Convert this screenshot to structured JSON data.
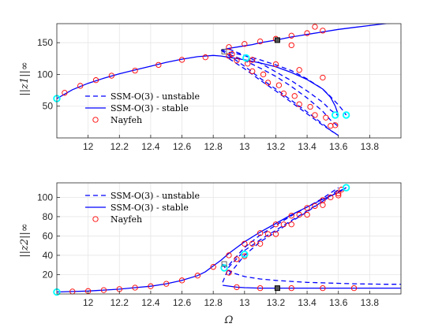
{
  "chart_data": [
    {
      "type": "line",
      "xlabel": "",
      "ylabel": "||z1||∞",
      "xlim": [
        11.8,
        14.0
      ],
      "ylim": [
        0,
        180
      ],
      "xticks": [
        12,
        12.2,
        12.4,
        12.6,
        12.8,
        13,
        13.2,
        13.4,
        13.6,
        13.8
      ],
      "yticks": [
        50,
        100,
        150
      ],
      "grid": true,
      "legend_position": "lower-left",
      "legend": [
        "SSM-O(3) - unstable",
        "SSM-O(3) - stable",
        "Nayfeh"
      ],
      "colors": {
        "ssm": "#0000ff",
        "nayfeh": "#ff0000",
        "bifurcation": "#00ffff",
        "special": "#000000"
      },
      "series": [
        {
          "name": "SSM-O(3) - stable",
          "style": "solid",
          "x": [
            11.8,
            11.9,
            12.0,
            12.1,
            12.2,
            12.3,
            12.4,
            12.5,
            12.6,
            12.7,
            12.8,
            12.85,
            12.9,
            13.0,
            13.1,
            13.2,
            13.3,
            13.4,
            13.5,
            13.55,
            13.58,
            13.6
          ],
          "y": [
            62,
            76,
            86,
            94,
            101,
            107,
            113,
            119,
            124,
            128,
            130,
            129,
            127,
            123,
            118,
            112,
            103,
            92,
            77,
            64,
            50,
            36
          ]
        },
        {
          "name": "SSM-O(3) - stable",
          "style": "solid",
          "x": [
            12.85,
            12.9,
            13.0,
            13.05,
            13.1,
            13.2,
            13.3,
            13.4,
            13.5,
            13.6,
            13.7,
            13.8,
            13.9,
            14.0
          ],
          "y": [
            138,
            141,
            145,
            147,
            150,
            154,
            159,
            163,
            167,
            171,
            174,
            177,
            180,
            182
          ]
        },
        {
          "name": "SSM-O(3) - unstable",
          "style": "dashed",
          "x": [
            12.85,
            12.9,
            13.0,
            13.1,
            13.2,
            13.3,
            13.4,
            13.5,
            13.55,
            13.6,
            13.63,
            13.65
          ],
          "y": [
            138,
            135,
            130,
            123,
            115,
            106,
            93,
            77,
            65,
            52,
            43,
            36
          ]
        },
        {
          "name": "SSM-O(3) - unstable",
          "style": "dashed",
          "x": [
            12.85,
            12.9,
            13.0,
            13.1,
            13.2,
            13.3,
            13.4,
            13.5,
            13.56,
            13.6
          ],
          "y": [
            138,
            130,
            113,
            94,
            77,
            59,
            41,
            22,
            10,
            4
          ]
        },
        {
          "name": "SSM-O(3) - unstable",
          "style": "dashed",
          "x": [
            12.9,
            13.0,
            13.1,
            13.2,
            13.3,
            13.4,
            13.5,
            13.6
          ],
          "y": [
            125,
            109,
            91,
            74,
            56,
            38,
            20,
            4
          ]
        },
        {
          "name": "SSM-O(3) - unstable",
          "style": "dashed",
          "x": [
            12.9,
            13.0,
            13.1,
            13.2,
            13.3,
            13.4,
            13.5,
            13.55,
            13.6
          ],
          "y": [
            132,
            122,
            110,
            97,
            81,
            63,
            42,
            28,
            18
          ]
        },
        {
          "name": "SSM-O(3) - unstable",
          "style": "dashed",
          "x": [
            12.9,
            13.0,
            13.1,
            13.2,
            13.3,
            13.4,
            13.5,
            13.55,
            13.6
          ],
          "y": [
            140,
            130,
            118,
            104,
            90,
            74,
            56,
            44,
            35
          ]
        },
        {
          "name": "Nayfeh",
          "style": "markers",
          "x": [
            11.85,
            11.95,
            12.05,
            12.15,
            12.3,
            12.45,
            12.6,
            12.75,
            12.9,
            13.05,
            13.2,
            13.35,
            13.5,
            12.9,
            13.0,
            13.1,
            13.2,
            13.3,
            13.4,
            13.5,
            12.92,
            13.02,
            13.12,
            13.22,
            13.32,
            13.42,
            13.52,
            13.58,
            12.95,
            13.05,
            13.15,
            13.25,
            13.35,
            13.45,
            13.55,
            13.3,
            13.45
          ],
          "y": [
            71,
            82,
            91,
            98,
            106,
            115,
            123,
            127,
            129,
            123,
            116,
            107,
            95,
            143,
            148,
            152,
            156,
            161,
            165,
            169,
            132,
            117,
            100,
            83,
            66,
            49,
            32,
            20,
            122,
            105,
            87,
            70,
            53,
            36,
            19,
            146,
            175
          ]
        }
      ],
      "markers": {
        "bifurcation": [
          {
            "x": 11.8,
            "y": 62
          },
          {
            "x": 13.01,
            "y": 126
          },
          {
            "x": 13.58,
            "y": 36
          },
          {
            "x": 13.65,
            "y": 36
          }
        ],
        "special": [
          {
            "x": 13.21,
            "y": 154
          }
        ],
        "special_open": [
          {
            "x": 12.87,
            "y": 136
          }
        ]
      }
    },
    {
      "type": "line",
      "xlabel": "Ω",
      "ylabel": "||z2||∞",
      "xlim": [
        11.8,
        14.0
      ],
      "ylim": [
        0,
        115
      ],
      "xticks": [
        12,
        12.2,
        12.4,
        12.6,
        12.8,
        13,
        13.2,
        13.4,
        13.6,
        13.8
      ],
      "yticks": [
        20,
        40,
        60,
        80,
        100
      ],
      "grid": true,
      "legend_position": "top-left",
      "legend": [
        "SSM-O(3) - unstable",
        "SSM-O(3) - stable",
        "Nayfeh"
      ],
      "colors": {
        "ssm": "#0000ff",
        "nayfeh": "#ff0000",
        "bifurcation": "#00ffff",
        "special": "#000000"
      },
      "series": [
        {
          "name": "SSM-O(3) - stable",
          "style": "solid",
          "x": [
            11.8,
            11.9,
            12.0,
            12.1,
            12.2,
            12.3,
            12.4,
            12.5,
            12.6,
            12.7,
            12.75,
            12.8,
            12.85,
            12.9,
            12.95,
            13.0,
            13.1,
            13.2,
            13.3,
            13.4,
            13.5,
            13.6,
            13.65
          ],
          "y": [
            2,
            2.5,
            3,
            4,
            5,
            6.5,
            8,
            10.5,
            14,
            19,
            23,
            29,
            35,
            42,
            48,
            54,
            64,
            73,
            82,
            90,
            98,
            105,
            110
          ]
        },
        {
          "name": "SSM-O(3) - stable",
          "style": "solid",
          "x": [
            12.86,
            12.95,
            13.0,
            13.1,
            13.2,
            13.3,
            13.4,
            13.5,
            13.6,
            13.7,
            13.8,
            13.9,
            14.0
          ],
          "y": [
            9,
            7,
            6.5,
            6,
            6,
            6,
            6,
            6,
            6,
            6,
            6,
            6,
            6
          ]
        },
        {
          "name": "SSM-O(3) - unstable",
          "style": "dashed",
          "x": [
            12.86,
            12.88,
            12.92,
            13.0,
            13.1,
            13.2,
            13.3,
            13.4,
            13.5,
            13.6,
            13.7,
            13.8,
            13.9,
            14.0
          ],
          "y": [
            31,
            26,
            22,
            18,
            15.5,
            14,
            13,
            12,
            11.5,
            11,
            10.5,
            10.3,
            10,
            10
          ]
        },
        {
          "name": "SSM-O(3) - unstable",
          "style": "dashed",
          "x": [
            12.86,
            12.9,
            13.0,
            13.1,
            13.2,
            13.3,
            13.4,
            13.5,
            13.6,
            13.65
          ],
          "y": [
            12,
            28,
            45,
            56,
            66,
            76,
            86,
            96,
            106,
            110
          ]
        },
        {
          "name": "SSM-O(3) - unstable",
          "style": "dashed",
          "x": [
            12.9,
            13.0,
            13.1,
            13.2,
            13.3,
            13.4,
            13.5,
            13.6
          ],
          "y": [
            20,
            40,
            54,
            64,
            75,
            85,
            96,
            108
          ]
        },
        {
          "name": "SSM-O(3) - unstable",
          "style": "dashed",
          "x": [
            12.9,
            13.0,
            13.1,
            13.2,
            13.3,
            13.4,
            13.5,
            13.6
          ],
          "y": [
            30,
            48,
            61,
            71,
            81,
            90,
            99,
            110
          ]
        },
        {
          "name": "Nayfeh",
          "style": "markers",
          "x": [
            11.9,
            12.0,
            12.1,
            12.2,
            12.3,
            12.4,
            12.5,
            12.6,
            12.7,
            12.8,
            12.9,
            13.0,
            13.1,
            13.2,
            13.3,
            13.4,
            13.5,
            13.6,
            12.9,
            13.0,
            13.1,
            13.2,
            13.3,
            13.4,
            13.5,
            13.6,
            12.95,
            13.05,
            13.15,
            13.25,
            13.35,
            13.45,
            13.55,
            13.62,
            12.95,
            13.1,
            13.3,
            13.5,
            13.7
          ],
          "y": [
            2.5,
            3,
            4,
            5,
            6.5,
            8,
            10.5,
            14,
            19,
            28,
            40,
            52,
            63,
            72,
            81,
            89,
            97,
            104,
            22,
            39,
            52,
            62,
            72,
            82,
            92,
            102,
            36,
            52,
            62,
            72,
            82,
            91,
            100,
            108,
            7,
            6,
            6,
            6,
            6
          ]
        }
      ],
      "markers": {
        "bifurcation": [
          {
            "x": 11.8,
            "y": 2
          },
          {
            "x": 12.87,
            "y": 27
          },
          {
            "x": 13.0,
            "y": 41
          },
          {
            "x": 13.65,
            "y": 110
          }
        ],
        "special": [
          {
            "x": 13.21,
            "y": 6
          }
        ],
        "special_open": [
          {
            "x": 12.87,
            "y": 31
          }
        ]
      }
    }
  ]
}
